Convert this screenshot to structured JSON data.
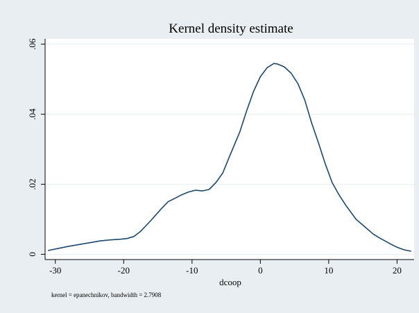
{
  "chart_data": {
    "type": "line",
    "title": "Kernel density estimate",
    "xlabel": "dcoop",
    "ylabel": "",
    "note": "kernel = epanechnikov, bandwidth = 2.7908",
    "xlim": [
      -31.5,
      22.5
    ],
    "ylim": [
      -0.0015,
      0.0615
    ],
    "x_ticks": [
      -30,
      -20,
      -10,
      0,
      10,
      20
    ],
    "x_tick_labels": [
      "-30",
      "-20",
      "-10",
      "0",
      "10",
      "20"
    ],
    "y_ticks": [
      0,
      0.02,
      0.04,
      0.06
    ],
    "y_tick_labels": [
      "0",
      ".02",
      ".04",
      ".06"
    ],
    "grid": "horizontal",
    "legend": "none",
    "colors": {
      "background": "#e8eef2",
      "plot_area": "#ffffff",
      "line": "#1a476f",
      "grid": "#e8eef2"
    },
    "series": [
      {
        "x": [
          -31.0,
          -29.5,
          -28.0,
          -26.5,
          -25.0,
          -23.5,
          -22.0,
          -20.5,
          -19.5,
          -18.5,
          -17.5,
          -16.0,
          -14.5,
          -13.5,
          -12.5,
          -11.5,
          -10.5,
          -9.5,
          -8.5,
          -7.5,
          -6.5,
          -5.5,
          -4.5,
          -3.0,
          -2.0,
          -1.0,
          0.0,
          1.0,
          2.0,
          2.5,
          3.5,
          4.5,
          5.5,
          6.5,
          7.5,
          8.5,
          9.5,
          10.5,
          11.5,
          12.5,
          14.0,
          15.5,
          16.5,
          17.5,
          19.0,
          20.0,
          21.0,
          22.0
        ],
        "y": [
          0.0011,
          0.0017,
          0.0023,
          0.0028,
          0.0033,
          0.0038,
          0.0041,
          0.0043,
          0.0045,
          0.0051,
          0.0066,
          0.0097,
          0.013,
          0.015,
          0.016,
          0.017,
          0.0178,
          0.0183,
          0.0181,
          0.0185,
          0.0205,
          0.0232,
          0.028,
          0.035,
          0.041,
          0.0465,
          0.0507,
          0.0533,
          0.0545,
          0.0543,
          0.0535,
          0.0517,
          0.0487,
          0.044,
          0.0375,
          0.0318,
          0.0258,
          0.0205,
          0.017,
          0.014,
          0.01,
          0.0075,
          0.0058,
          0.0046,
          0.003,
          0.002,
          0.0013,
          0.0009
        ]
      }
    ]
  }
}
